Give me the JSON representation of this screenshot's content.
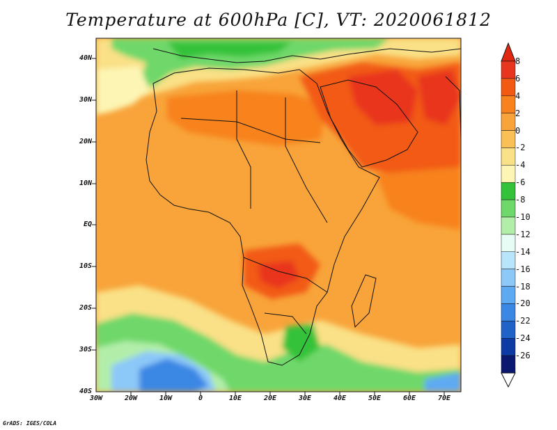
{
  "title": "Temperature at 600hPa [C], VT: 2020061812",
  "credit": "GrADS: IGES/COLA",
  "map": {
    "lat_range": [
      -40,
      45
    ],
    "lon_range": [
      -30,
      75
    ],
    "lat_ticks": [
      "40N",
      "30N",
      "20N",
      "10N",
      "EQ",
      "10S",
      "20S",
      "30S",
      "40S"
    ],
    "lon_ticks": [
      "30W",
      "20W",
      "10W",
      "0",
      "10E",
      "20E",
      "30E",
      "40E",
      "50E",
      "60E",
      "70E"
    ]
  },
  "colorbar": {
    "labels": [
      "8",
      "6",
      "4",
      "2",
      "0",
      "-2",
      "-4",
      "-6",
      "-8",
      "-10",
      "-12",
      "-14",
      "-16",
      "-18",
      "-20",
      "-22",
      "-24",
      "-26"
    ],
    "colors": [
      "#e8361e",
      "#f25a14",
      "#f8821e",
      "#f8a43a",
      "#f9c155",
      "#fae086",
      "#fdf5b4",
      "#34c23a",
      "#6fd86a",
      "#b2eeaa",
      "#e7fcf4",
      "#b8e4fc",
      "#8cc8f8",
      "#5eaaf2",
      "#3b87e4",
      "#1f62c8",
      "#0d3aa4",
      "#0b1870"
    ],
    "top_color": "#e02810",
    "bottom_color": "#ffffff"
  }
}
